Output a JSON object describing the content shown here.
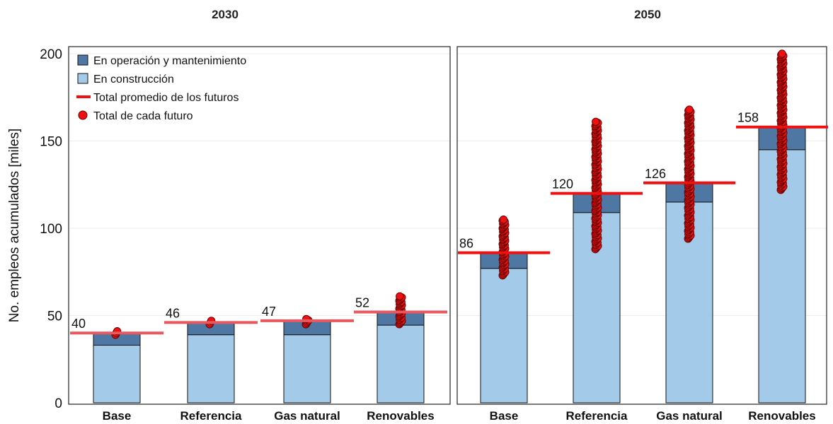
{
  "chart_data": {
    "type": "bar",
    "stacked": true,
    "ylabel": "No. empleos acumulados [miles]",
    "ylim": [
      0,
      200
    ],
    "yticks": [
      0,
      50,
      100,
      150,
      200
    ],
    "categories": [
      "Base",
      "Referencia",
      "Gas natural",
      "Renovables"
    ],
    "legend": {
      "placement": "top-left",
      "items": [
        {
          "label": "En operación y mantenimiento",
          "kind": "box",
          "color": "#4f77a4"
        },
        {
          "label": "En construcción",
          "kind": "box",
          "color": "#a3cbe9"
        },
        {
          "label": "Total promedio de los futuros",
          "kind": "line",
          "color": "#ee1111"
        },
        {
          "label": "Total de cada futuro",
          "kind": "dot",
          "color": "#ee1111"
        }
      ]
    },
    "colors": {
      "om": "#4f77a4",
      "construccion": "#a3cbe9",
      "avg_2030": "#e8585e",
      "avg_2050": "#ee1111",
      "dots": "#ee1111"
    },
    "panels": [
      {
        "title": "2030",
        "series": [
          {
            "name": "En construcción",
            "values": [
              33,
              39,
              39,
              44.5
            ]
          },
          {
            "name": "En operación y mantenimiento",
            "values": [
              7,
              7,
              8,
              7.5
            ]
          }
        ],
        "average_totals": [
          40,
          46,
          47,
          52
        ],
        "average_labels": [
          "40",
          "46",
          "47",
          "52"
        ],
        "futures_range": [
          [
            39,
            41
          ],
          [
            45,
            47
          ],
          [
            45,
            48
          ],
          [
            45,
            61
          ]
        ]
      },
      {
        "title": "2050",
        "series": [
          {
            "name": "En construcción",
            "values": [
              77,
              109,
              115,
              145
            ]
          },
          {
            "name": "En operación y mantenimiento",
            "values": [
              9,
              11,
              11,
              13
            ]
          }
        ],
        "average_totals": [
          86,
          120,
          126,
          158
        ],
        "average_labels": [
          "86",
          "120",
          "126",
          "158"
        ],
        "futures_range": [
          [
            73,
            105
          ],
          [
            88,
            161
          ],
          [
            94,
            168
          ],
          [
            122,
            200
          ]
        ]
      }
    ]
  }
}
